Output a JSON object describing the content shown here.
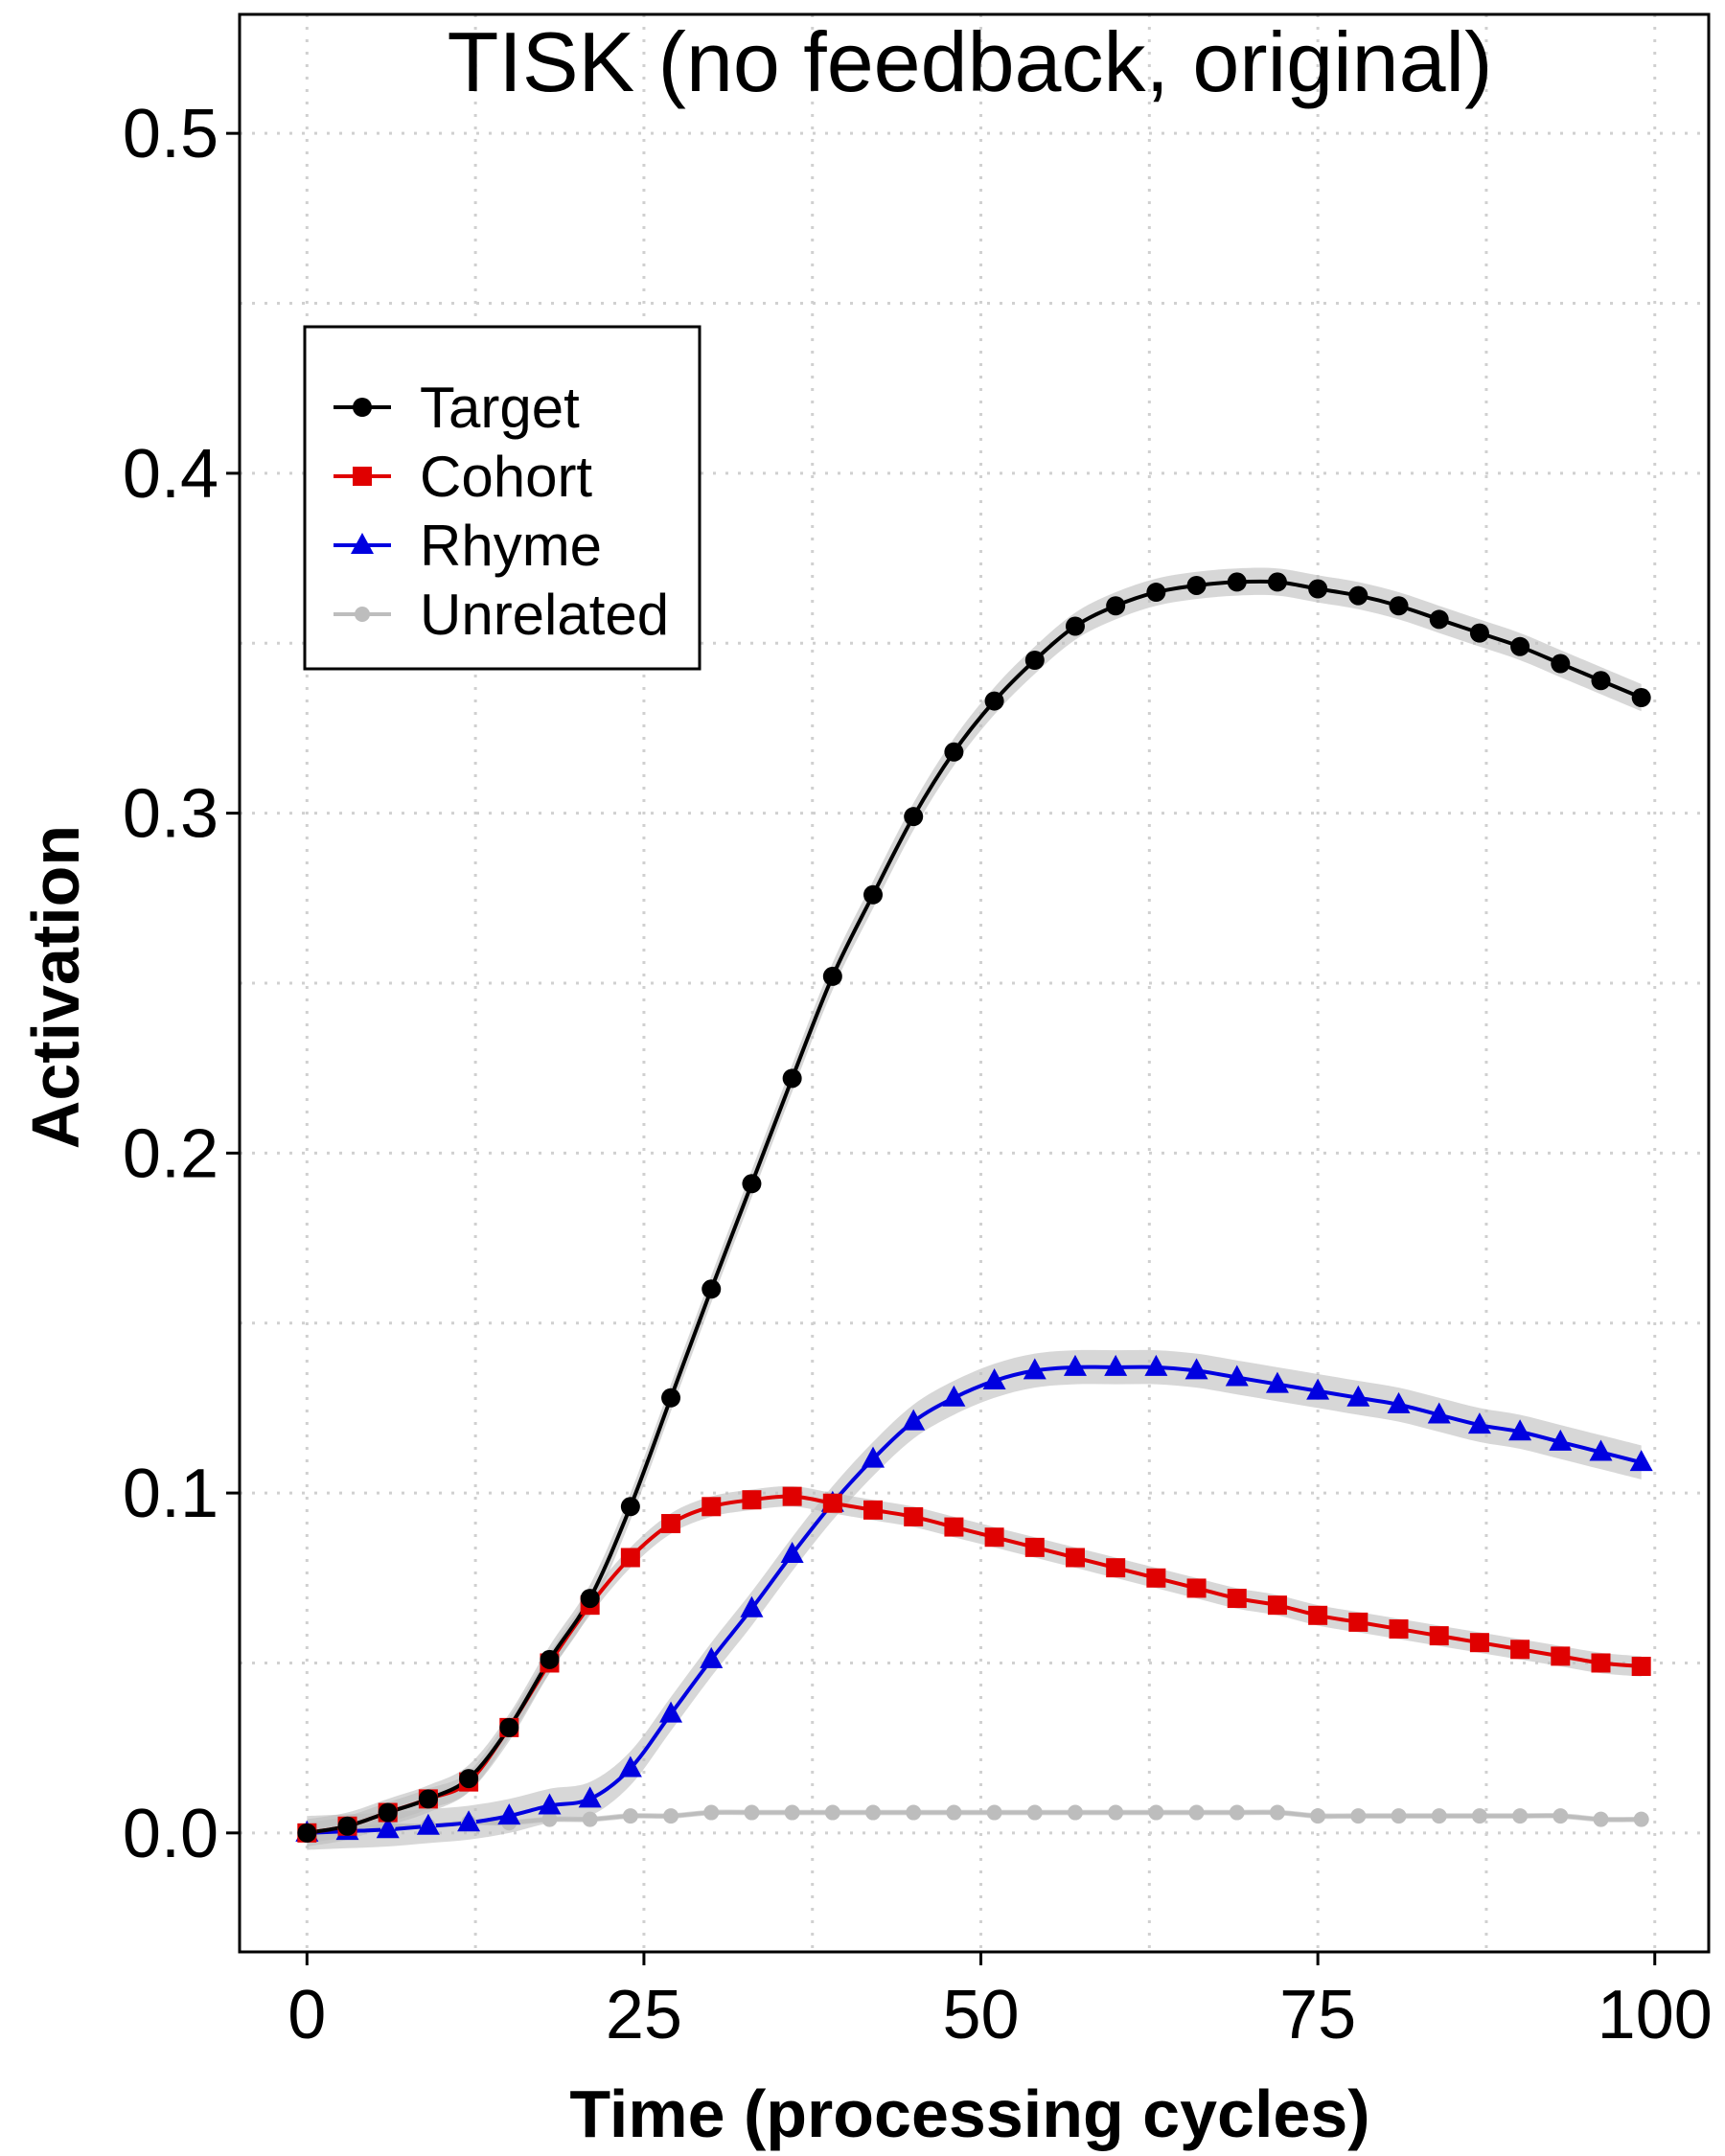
{
  "chart_data": {
    "type": "line",
    "title": "TISK (no feedback, original)",
    "xlabel": "Time (processing cycles)",
    "ylabel": "Activation",
    "xlim": [
      -5,
      104
    ],
    "ylim": [
      -0.035,
      0.535
    ],
    "x_ticks": [
      0,
      25,
      50,
      75,
      100
    ],
    "x_tick_labels": [
      "0",
      "25",
      "50",
      "75",
      "100"
    ],
    "y_ticks": [
      0.0,
      0.1,
      0.2,
      0.3,
      0.4,
      0.5
    ],
    "y_tick_labels": [
      "0.0",
      "0.1",
      "0.2",
      "0.3",
      "0.4",
      "0.5"
    ],
    "grid": true,
    "legend_position": "top-left",
    "x": [
      0,
      3,
      6,
      9,
      12,
      15,
      18,
      21,
      24,
      27,
      30,
      33,
      36,
      39,
      42,
      45,
      48,
      51,
      54,
      57,
      60,
      63,
      66,
      69,
      72,
      75,
      78,
      81,
      84,
      87,
      90,
      93,
      96,
      99
    ],
    "series": [
      {
        "name": "Target",
        "color": "#000000",
        "marker": "circle",
        "values": [
          0.0,
          0.002,
          0.006,
          0.01,
          0.016,
          0.031,
          0.051,
          0.069,
          0.096,
          0.128,
          0.16,
          0.191,
          0.222,
          0.252,
          0.276,
          0.299,
          0.318,
          0.333,
          0.345,
          0.355,
          0.361,
          0.365,
          0.367,
          0.368,
          0.368,
          0.366,
          0.364,
          0.361,
          0.357,
          0.353,
          0.349,
          0.344,
          0.339,
          0.334
        ],
        "band": 0.004
      },
      {
        "name": "Cohort",
        "color": "#e00000",
        "marker": "square",
        "values": [
          0.0,
          0.002,
          0.006,
          0.01,
          0.015,
          0.031,
          0.05,
          0.067,
          0.081,
          0.091,
          0.096,
          0.098,
          0.099,
          0.097,
          0.095,
          0.093,
          0.09,
          0.087,
          0.084,
          0.081,
          0.078,
          0.075,
          0.072,
          0.069,
          0.067,
          0.064,
          0.062,
          0.06,
          0.058,
          0.056,
          0.054,
          0.052,
          0.05,
          0.049
        ],
        "band": 0.003
      },
      {
        "name": "Rhyme",
        "color": "#0000e0",
        "marker": "triangle",
        "values": [
          0.0,
          0.0005,
          0.001,
          0.002,
          0.003,
          0.005,
          0.008,
          0.01,
          0.019,
          0.035,
          0.051,
          0.066,
          0.082,
          0.097,
          0.11,
          0.121,
          0.128,
          0.133,
          0.136,
          0.137,
          0.137,
          0.137,
          0.136,
          0.134,
          0.132,
          0.13,
          0.128,
          0.126,
          0.123,
          0.12,
          0.118,
          0.115,
          0.112,
          0.109
        ],
        "band": 0.005
      },
      {
        "name": "Unrelated",
        "color": "#bdbdbd",
        "marker": "circle-small",
        "values": [
          0.0,
          0.001,
          0.002,
          0.002,
          0.003,
          0.003,
          0.004,
          0.004,
          0.005,
          0.005,
          0.006,
          0.006,
          0.006,
          0.006,
          0.006,
          0.006,
          0.006,
          0.006,
          0.006,
          0.006,
          0.006,
          0.006,
          0.006,
          0.006,
          0.006,
          0.005,
          0.005,
          0.005,
          0.005,
          0.005,
          0.005,
          0.005,
          0.004,
          0.004
        ],
        "band": 0.0008
      }
    ]
  }
}
